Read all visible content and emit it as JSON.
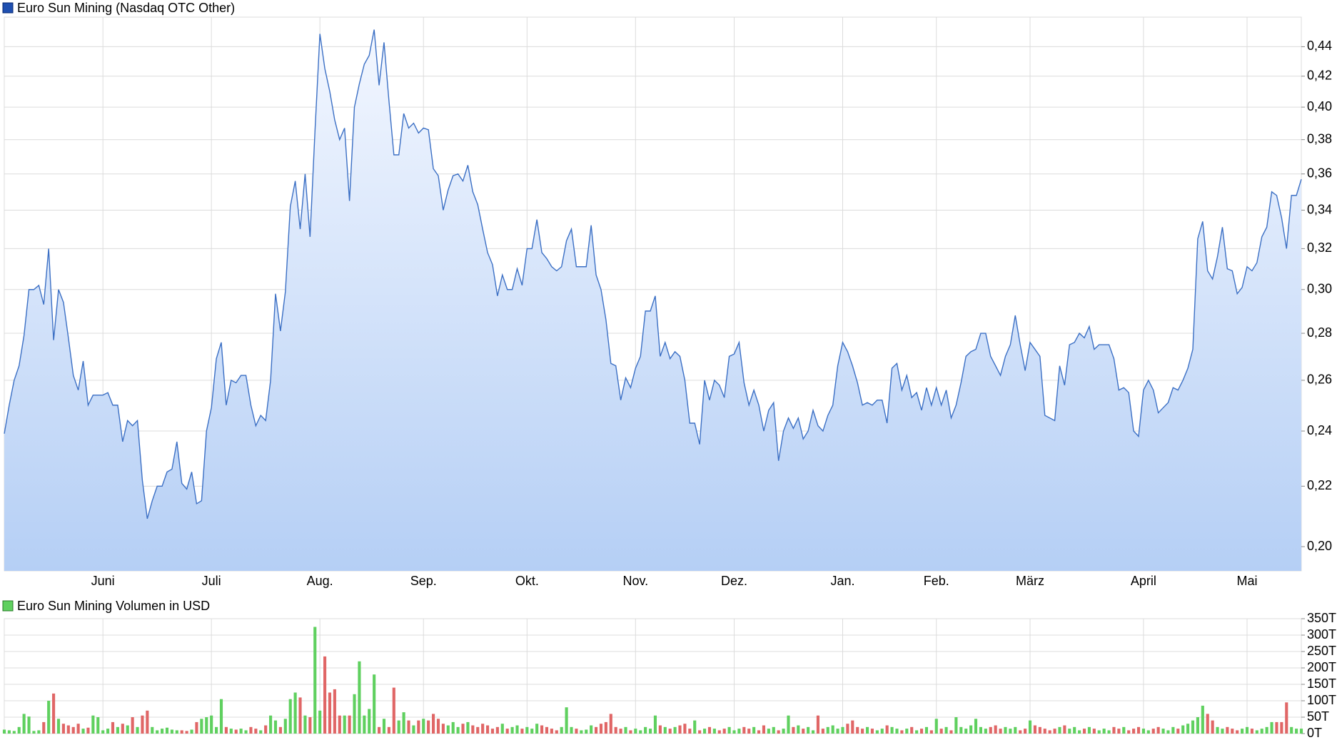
{
  "chart_data": [
    {
      "type": "line",
      "title": "Euro Sun Mining (Nasdaq OTC Other)",
      "color": "#3b6fc4",
      "log": true,
      "grid": true,
      "values": [
        0.239,
        0.25,
        0.26,
        0.266,
        0.279,
        0.3,
        0.3,
        0.302,
        0.293,
        0.32,
        0.277,
        0.3,
        0.294,
        0.278,
        0.262,
        0.256,
        0.268,
        0.25,
        0.254,
        0.254,
        0.254,
        0.255,
        0.25,
        0.25,
        0.236,
        0.244,
        0.242,
        0.244,
        0.222,
        0.209,
        0.215,
        0.22,
        0.22,
        0.225,
        0.226,
        0.236,
        0.221,
        0.219,
        0.225,
        0.214,
        0.215,
        0.24,
        0.249,
        0.269,
        0.276,
        0.25,
        0.26,
        0.259,
        0.262,
        0.262,
        0.25,
        0.242,
        0.246,
        0.244,
        0.26,
        0.298,
        0.281,
        0.299,
        0.342,
        0.356,
        0.33,
        0.36,
        0.326,
        0.385,
        0.449,
        0.425,
        0.41,
        0.392,
        0.38,
        0.387,
        0.345,
        0.4,
        0.415,
        0.428,
        0.434,
        0.452,
        0.414,
        0.443,
        0.404,
        0.371,
        0.371,
        0.396,
        0.387,
        0.39,
        0.384,
        0.387,
        0.386,
        0.363,
        0.359,
        0.34,
        0.351,
        0.359,
        0.36,
        0.356,
        0.365,
        0.35,
        0.343,
        0.33,
        0.318,
        0.312,
        0.297,
        0.307,
        0.3,
        0.3,
        0.31,
        0.302,
        0.32,
        0.32,
        0.335,
        0.318,
        0.315,
        0.311,
        0.309,
        0.311,
        0.324,
        0.33,
        0.311,
        0.311,
        0.311,
        0.332,
        0.307,
        0.3,
        0.286,
        0.267,
        0.266,
        0.252,
        0.261,
        0.257,
        0.265,
        0.27,
        0.29,
        0.29,
        0.297,
        0.27,
        0.276,
        0.269,
        0.272,
        0.27,
        0.26,
        0.243,
        0.243,
        0.235,
        0.26,
        0.252,
        0.26,
        0.258,
        0.253,
        0.27,
        0.271,
        0.276,
        0.259,
        0.25,
        0.256,
        0.25,
        0.24,
        0.248,
        0.251,
        0.229,
        0.24,
        0.245,
        0.241,
        0.245,
        0.237,
        0.24,
        0.248,
        0.242,
        0.24,
        0.246,
        0.25,
        0.266,
        0.276,
        0.272,
        0.266,
        0.259,
        0.25,
        0.251,
        0.25,
        0.252,
        0.252,
        0.243,
        0.265,
        0.267,
        0.256,
        0.262,
        0.253,
        0.255,
        0.248,
        0.257,
        0.25,
        0.257,
        0.25,
        0.256,
        0.245,
        0.25,
        0.259,
        0.27,
        0.272,
        0.273,
        0.28,
        0.28,
        0.27,
        0.266,
        0.262,
        0.27,
        0.275,
        0.288,
        0.275,
        0.264,
        0.276,
        0.273,
        0.27,
        0.246,
        0.245,
        0.244,
        0.266,
        0.258,
        0.275,
        0.276,
        0.28,
        0.278,
        0.283,
        0.273,
        0.275,
        0.275,
        0.275,
        0.269,
        0.256,
        0.257,
        0.255,
        0.24,
        0.238,
        0.256,
        0.26,
        0.256,
        0.247,
        0.249,
        0.251,
        0.257,
        0.256,
        0.26,
        0.265,
        0.273,
        0.325,
        0.334,
        0.309,
        0.305,
        0.316,
        0.331,
        0.31,
        0.309,
        0.298,
        0.301,
        0.311,
        0.309,
        0.313,
        0.326,
        0.331,
        0.35,
        0.348,
        0.336,
        0.32,
        0.348,
        0.348,
        0.357
      ],
      "xlim": [
        0,
        263
      ],
      "xticks": [
        {
          "value": 20,
          "label": "Juni"
        },
        {
          "value": 42,
          "label": "Juli"
        },
        {
          "value": 64,
          "label": "Aug."
        },
        {
          "value": 85,
          "label": "Sep."
        },
        {
          "value": 106,
          "label": "Okt."
        },
        {
          "value": 128,
          "label": "Nov."
        },
        {
          "value": 148,
          "label": "Dez."
        },
        {
          "value": 170,
          "label": "Jan."
        },
        {
          "value": 189,
          "label": "Feb."
        },
        {
          "value": 208,
          "label": "März"
        },
        {
          "value": 231,
          "label": "April"
        },
        {
          "value": 252,
          "label": "Mai"
        }
      ],
      "ylim": [
        0.1925,
        0.461
      ],
      "yticks": [
        {
          "value": 0.2,
          "label": "0,20"
        },
        {
          "value": 0.22,
          "label": "0,22"
        },
        {
          "value": 0.24,
          "label": "0,24"
        },
        {
          "value": 0.26,
          "label": "0,26"
        },
        {
          "value": 0.28,
          "label": "0,28"
        },
        {
          "value": 0.3,
          "label": "0,30"
        },
        {
          "value": 0.32,
          "label": "0,32"
        },
        {
          "value": 0.34,
          "label": "0,34"
        },
        {
          "value": 0.36,
          "label": "0,36"
        },
        {
          "value": 0.38,
          "label": "0,38"
        },
        {
          "value": 0.4,
          "label": "0,40"
        },
        {
          "value": 0.42,
          "label": "0,42"
        },
        {
          "value": 0.44,
          "label": "0,44"
        }
      ]
    },
    {
      "type": "bar",
      "title": "Euro Sun Mining Volumen in USD",
      "color": "#5fd05f",
      "grid": true,
      "values": [
        12,
        10,
        8,
        20,
        60,
        52,
        8,
        10,
        35,
        100,
        122,
        45,
        30,
        25,
        20,
        30,
        15,
        18,
        55,
        50,
        10,
        15,
        35,
        20,
        30,
        25,
        50,
        20,
        55,
        70,
        20,
        10,
        15,
        18,
        12,
        10,
        10,
        8,
        12,
        35,
        45,
        50,
        55,
        20,
        105,
        20,
        15,
        12,
        15,
        10,
        20,
        15,
        10,
        25,
        55,
        40,
        20,
        45,
        105,
        125,
        110,
        55,
        50,
        325,
        70,
        235,
        125,
        135,
        55,
        55,
        55,
        120,
        220,
        55,
        75,
        180,
        20,
        45,
        20,
        140,
        40,
        65,
        40,
        25,
        40,
        45,
        40,
        60,
        45,
        30,
        25,
        35,
        20,
        30,
        35,
        25,
        20,
        30,
        25,
        15,
        20,
        30,
        15,
        20,
        25,
        15,
        20,
        15,
        30,
        25,
        20,
        15,
        10,
        20,
        80,
        20,
        15,
        10,
        12,
        25,
        20,
        30,
        35,
        60,
        20,
        15,
        20,
        10,
        15,
        10,
        20,
        15,
        55,
        25,
        20,
        15,
        20,
        25,
        30,
        15,
        40,
        10,
        15,
        20,
        15,
        10,
        15,
        20,
        10,
        15,
        20,
        15,
        20,
        10,
        25,
        15,
        20,
        10,
        15,
        55,
        20,
        25,
        15,
        20,
        10,
        55,
        15,
        20,
        25,
        15,
        20,
        30,
        40,
        20,
        15,
        20,
        15,
        10,
        15,
        25,
        20,
        15,
        10,
        15,
        20,
        10,
        15,
        20,
        10,
        45,
        15,
        20,
        10,
        50,
        20,
        15,
        25,
        45,
        20,
        15,
        20,
        25,
        15,
        20,
        15,
        20,
        10,
        15,
        40,
        25,
        20,
        15,
        10,
        15,
        20,
        25,
        15,
        20,
        10,
        15,
        20,
        15,
        10,
        15,
        10,
        20,
        15,
        20,
        10,
        15,
        20,
        15,
        10,
        15,
        20,
        15,
        10,
        20,
        15,
        25,
        30,
        40,
        50,
        85,
        60,
        40,
        20,
        15,
        20,
        15,
        10,
        15,
        20,
        15,
        10,
        15,
        20,
        35,
        35,
        35,
        95,
        20,
        15,
        15
      ],
      "colors": [
        "#5fd05f",
        "#5fd05f",
        "#5fd05f",
        "#5fd05f",
        "#5fd05f",
        "#5fd05f",
        "#5fd05f",
        "#5fd05f",
        "#e06666",
        "#5fd05f",
        "#e06666",
        "#5fd05f",
        "#e06666",
        "#e06666",
        "#e06666",
        "#e06666",
        "#5fd05f",
        "#e06666",
        "#5fd05f",
        "#5fd05f",
        "#5fd05f",
        "#5fd05f",
        "#e06666",
        "#5fd05f",
        "#e06666",
        "#5fd05f",
        "#e06666",
        "#5fd05f",
        "#e06666",
        "#e06666",
        "#5fd05f",
        "#5fd05f",
        "#5fd05f",
        "#5fd05f",
        "#5fd05f",
        "#5fd05f",
        "#e06666",
        "#e06666",
        "#5fd05f",
        "#e06666",
        "#5fd05f",
        "#5fd05f",
        "#5fd05f",
        "#5fd05f",
        "#5fd05f",
        "#e06666",
        "#5fd05f",
        "#e06666",
        "#5fd05f",
        "#5fd05f",
        "#e06666",
        "#e06666",
        "#5fd05f",
        "#e06666",
        "#5fd05f",
        "#5fd05f",
        "#e06666",
        "#5fd05f",
        "#5fd05f",
        "#5fd05f",
        "#e06666",
        "#5fd05f",
        "#e06666",
        "#5fd05f",
        "#5fd05f",
        "#e06666",
        "#e06666",
        "#e06666",
        "#e06666",
        "#5fd05f",
        "#e06666",
        "#5fd05f",
        "#5fd05f",
        "#5fd05f",
        "#5fd05f",
        "#5fd05f",
        "#e06666",
        "#5fd05f",
        "#e06666",
        "#e06666",
        "#5fd05f",
        "#5fd05f",
        "#e06666",
        "#5fd05f",
        "#e06666",
        "#5fd05f",
        "#e06666",
        "#e06666",
        "#e06666",
        "#e06666",
        "#5fd05f",
        "#5fd05f",
        "#5fd05f",
        "#e06666",
        "#5fd05f",
        "#e06666",
        "#e06666",
        "#e06666",
        "#e06666",
        "#e06666",
        "#e06666",
        "#5fd05f",
        "#e06666",
        "#5fd05f",
        "#5fd05f",
        "#e06666",
        "#5fd05f",
        "#5fd05f",
        "#5fd05f",
        "#e06666",
        "#e06666",
        "#e06666",
        "#e06666",
        "#5fd05f",
        "#5fd05f",
        "#5fd05f",
        "#e06666",
        "#5fd05f",
        "#5fd05f",
        "#5fd05f",
        "#e06666",
        "#e06666",
        "#e06666",
        "#e06666",
        "#e06666",
        "#e06666",
        "#5fd05f",
        "#e06666",
        "#5fd05f",
        "#5fd05f",
        "#5fd05f",
        "#5fd05f",
        "#5fd05f",
        "#e06666",
        "#5fd05f",
        "#e06666",
        "#5fd05f",
        "#e06666",
        "#e06666",
        "#e06666",
        "#5fd05f",
        "#e06666",
        "#5fd05f",
        "#e06666",
        "#5fd05f",
        "#e06666",
        "#e06666",
        "#5fd05f",
        "#5fd05f",
        "#5fd05f",
        "#e06666",
        "#e06666",
        "#5fd05f",
        "#e06666",
        "#e06666",
        "#5fd05f",
        "#5fd05f",
        "#e06666",
        "#5fd05f",
        "#5fd05f",
        "#e06666",
        "#5fd05f",
        "#e06666",
        "#5fd05f",
        "#5fd05f",
        "#e06666",
        "#e06666",
        "#5fd05f",
        "#5fd05f",
        "#5fd05f",
        "#5fd05f",
        "#e06666",
        "#e06666",
        "#e06666",
        "#e06666",
        "#5fd05f",
        "#e06666",
        "#5fd05f",
        "#5fd05f",
        "#e06666",
        "#5fd05f",
        "#5fd05f",
        "#e06666",
        "#5fd05f",
        "#e06666",
        "#5fd05f",
        "#e06666",
        "#5fd05f",
        "#e06666",
        "#5fd05f",
        "#e06666",
        "#5fd05f",
        "#e06666",
        "#5fd05f",
        "#5fd05f",
        "#5fd05f",
        "#5fd05f",
        "#5fd05f",
        "#5fd05f",
        "#5fd05f",
        "#e06666",
        "#e06666",
        "#e06666",
        "#5fd05f",
        "#5fd05f",
        "#5fd05f",
        "#e06666",
        "#e06666",
        "#5fd05f",
        "#e06666",
        "#e06666",
        "#e06666",
        "#e06666",
        "#e06666",
        "#5fd05f",
        "#e06666",
        "#5fd05f",
        "#5fd05f",
        "#5fd05f",
        "#e06666",
        "#5fd05f",
        "#e06666",
        "#5fd05f",
        "#5fd05f",
        "#5fd05f",
        "#e06666",
        "#e06666",
        "#5fd05f",
        "#e06666",
        "#e06666",
        "#e06666",
        "#5fd05f",
        "#5fd05f",
        "#e06666",
        "#e06666",
        "#5fd05f",
        "#5fd05f",
        "#5fd05f",
        "#e06666",
        "#5fd05f",
        "#5fd05f",
        "#5fd05f",
        "#5fd05f",
        "#5fd05f",
        "#e06666",
        "#e06666",
        "#5fd05f",
        "#5fd05f",
        "#e06666",
        "#e06666",
        "#e06666",
        "#5fd05f",
        "#5fd05f",
        "#e06666",
        "#5fd05f",
        "#5fd05f",
        "#5fd05f",
        "#5fd05f",
        "#e06666",
        "#e06666",
        "#e06666",
        "#5fd05f",
        "#5fd05f",
        "#5fd05f"
      ],
      "xlim": [
        0,
        263
      ],
      "ylim": [
        0,
        350
      ],
      "yticks": [
        {
          "value": 0,
          "label": "0T"
        },
        {
          "value": 50,
          "label": "50T"
        },
        {
          "value": 100,
          "label": "100T"
        },
        {
          "value": 150,
          "label": "150T"
        },
        {
          "value": 200,
          "label": "200T"
        },
        {
          "value": 250,
          "label": "250T"
        },
        {
          "value": 300,
          "label": "300T"
        },
        {
          "value": 350,
          "label": "350T"
        }
      ]
    }
  ]
}
